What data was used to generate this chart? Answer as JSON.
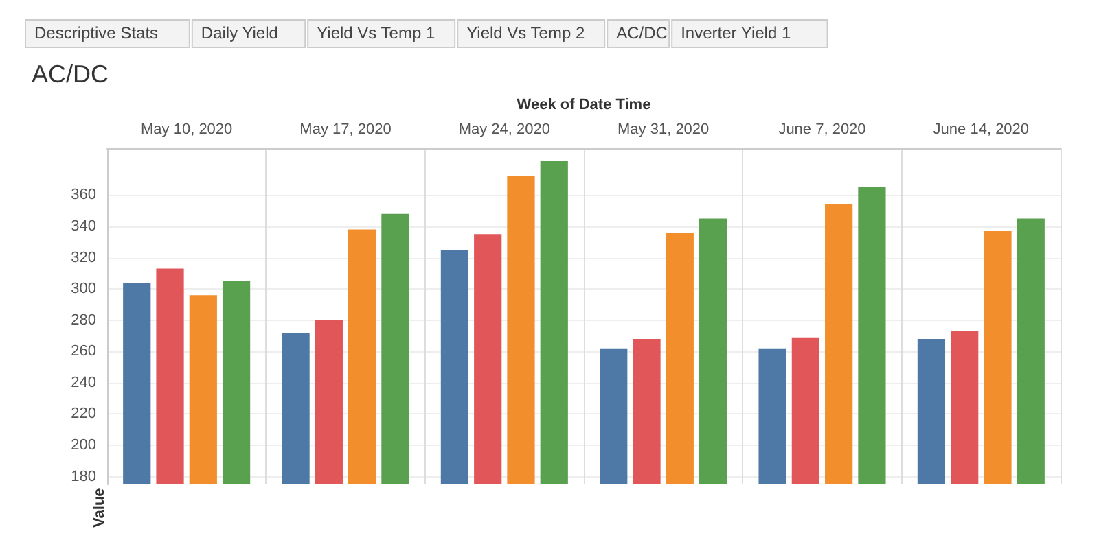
{
  "chart_data": {
    "type": "bar",
    "title": "AC/DC",
    "xlabel": "Week of Date Time",
    "ylabel": "Value",
    "annotations": [
      "Descriptive Stats",
      "Daily Yield",
      "Yield Vs Temp 1",
      "Yield Vs Temp 2",
      "AC/DC",
      "Inverter Yield 1"
    ],
    "categories": [
      "May 10, 2020",
      "May 17, 2020",
      "May 24, 2020",
      "May 31, 2020",
      "June 7, 2020",
      "June 14, 2020"
    ],
    "series": [
      {
        "color": "#4e79a7",
        "values": [
          304,
          272,
          325,
          262,
          262,
          268
        ]
      },
      {
        "color": "#e15759",
        "values": [
          313,
          280,
          335,
          268,
          269,
          273
        ]
      },
      {
        "color": "#f28e2b",
        "values": [
          296,
          338,
          372,
          336,
          354,
          337
        ]
      },
      {
        "color": "#59a14f",
        "values": [
          305,
          348,
          382,
          345,
          365,
          345
        ]
      }
    ],
    "ylim": [
      175,
      390
    ],
    "yticks": [
      180,
      200,
      220,
      240,
      260,
      280,
      300,
      320,
      340,
      360
    ],
    "grid": true
  }
}
